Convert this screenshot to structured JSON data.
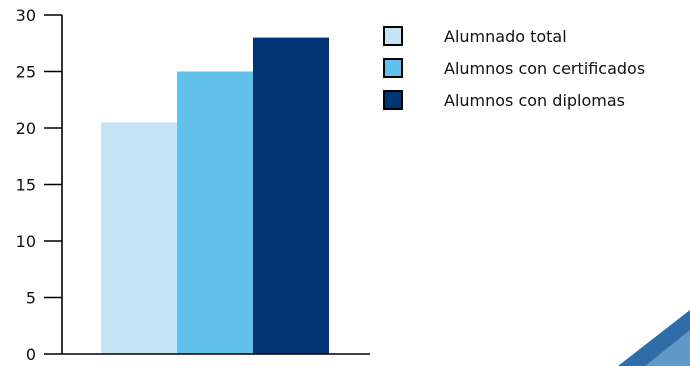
{
  "chart_data": {
    "type": "bar",
    "categories": [
      ""
    ],
    "series": [
      {
        "name": "Alumnado total",
        "values": [
          20.5
        ],
        "color": "#c5e4f5"
      },
      {
        "name": "Alumnos con certificados",
        "values": [
          25.0
        ],
        "color": "#62c1eb"
      },
      {
        "name": "Alumnos con diplomas",
        "values": [
          28.0
        ],
        "color": "#003474"
      }
    ],
    "title": "",
    "xlabel": "",
    "ylabel": "",
    "ylim": [
      0,
      30
    ],
    "yticks": [
      0,
      5,
      10,
      15,
      20,
      25,
      30
    ],
    "grid": false,
    "legend_position": "top-right"
  }
}
